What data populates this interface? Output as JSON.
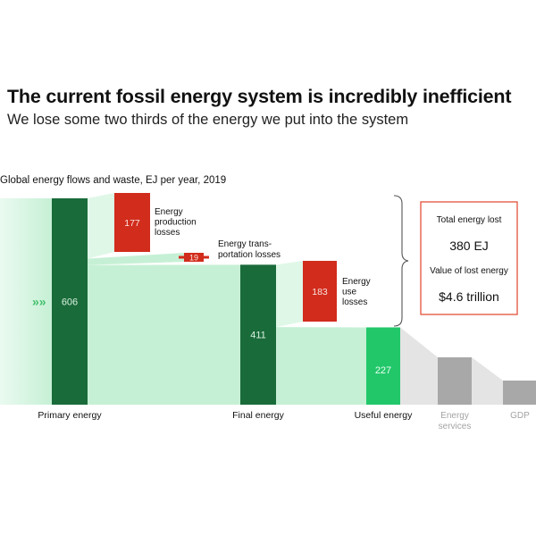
{
  "title": "The current fossil energy system is incredibly inefficient",
  "subtitle": "We lose some two thirds of the energy we put into the system",
  "chart_data": {
    "type": "sankey",
    "title": "Global energy flows and waste, EJ per year, 2019",
    "units": "EJ",
    "stages": [
      {
        "key": "primary",
        "label": "Primary energy",
        "value": 606,
        "value_label": "606"
      },
      {
        "key": "final",
        "label": "Final energy",
        "value": 411,
        "value_label": "411"
      },
      {
        "key": "useful",
        "label": "Useful energy",
        "value": 227,
        "value_label": "227"
      },
      {
        "key": "services",
        "label": "Energy services",
        "label_lines": [
          "Energy",
          "services"
        ]
      },
      {
        "key": "gdp",
        "label": "GDP"
      }
    ],
    "losses": [
      {
        "key": "production",
        "label": "Energy production losses",
        "label_lines": [
          "Energy",
          "production",
          "losses"
        ],
        "value": 177,
        "value_label": "177"
      },
      {
        "key": "transport",
        "label": "Energy transportation losses",
        "label_lines": [
          "Energy trans-",
          "portation losses"
        ],
        "value": 19,
        "value_label": "19"
      },
      {
        "key": "use",
        "label": "Energy use losses",
        "label_lines": [
          "Energy",
          "use",
          "losses"
        ],
        "value": 183,
        "value_label": "183"
      }
    ],
    "summary": {
      "total_lost_label": "Total energy lost",
      "total_lost_value": "380 EJ",
      "lost_value_label": "Value of lost energy",
      "lost_value_value": "$4.6 trillion"
    },
    "arrow_glyph": "»»"
  },
  "colors": {
    "primary_bar": "#1a6b3a",
    "useful_bar": "#22c76a",
    "flow": "#c6f0d5",
    "flow_light": "#dff7e7",
    "loss": "#d12c1c",
    "grey_bar": "#a8a8a8",
    "grey_flow": "#e4e4e4",
    "summary_border": "#e3503a",
    "arrow": "#3fbf6a"
  }
}
